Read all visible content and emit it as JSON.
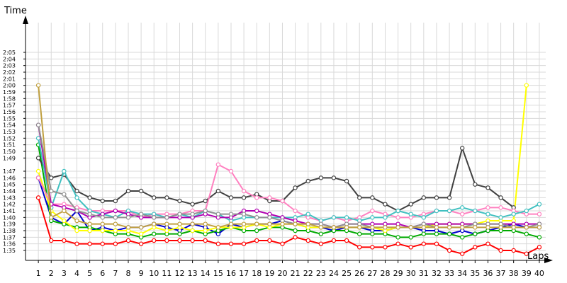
{
  "chart_data": {
    "type": "line",
    "ylabel": "Time",
    "xlabel": "Laps",
    "x": [
      1,
      2,
      3,
      4,
      5,
      6,
      7,
      8,
      9,
      10,
      11,
      12,
      13,
      14,
      15,
      16,
      17,
      18,
      19,
      20,
      21,
      22,
      23,
      24,
      25,
      26,
      27,
      28,
      29,
      30,
      31,
      32,
      33,
      34,
      35,
      36,
      37,
      38,
      39,
      40
    ],
    "xlim": [
      0,
      40.5
    ],
    "y_unit": "seconds",
    "ylim": [
      93.5,
      129.5
    ],
    "y_ticks": [
      "1:35",
      "1:36",
      "1:37",
      "1:38",
      "1:39",
      "1:40",
      "1:41",
      "1:42",
      "1:43",
      "1:44",
      "1:45",
      "1:46",
      "1:47",
      "1:49",
      "1:50",
      "1:51",
      "1:52",
      "1:53",
      "1:54",
      "1:55",
      "1:56",
      "1:57",
      "1:58",
      "1:59",
      "2:00",
      "2:01",
      "2:02",
      "2:03",
      "2:04",
      "2:05"
    ],
    "grid": true,
    "marker": "circle",
    "series": [
      {
        "color": "#ff0000",
        "values": [
          103,
          96.5,
          96.5,
          96,
          96,
          96,
          96,
          96.5,
          96,
          96.5,
          96.5,
          96.5,
          96.5,
          96.5,
          96,
          96,
          96,
          96.5,
          96.5,
          96,
          97,
          96.5,
          96,
          96.5,
          96.5,
          95.5,
          95.5,
          95.5,
          96,
          95.5,
          96,
          96,
          95,
          94.5,
          95.5,
          96,
          95,
          95,
          94.5,
          95.5
        ]
      },
      {
        "color": "#0000cc",
        "values": [
          106,
          100,
          99,
          101,
          98,
          98.5,
          98,
          98.5,
          98.5,
          99,
          98.5,
          98,
          99,
          98.5,
          97.5,
          99,
          98.5,
          99,
          99,
          99.5,
          99,
          98.5,
          98.5,
          98,
          98.5,
          98.5,
          98,
          98,
          98.5,
          98.5,
          98,
          98,
          97.5,
          98,
          97.5,
          98,
          98.5,
          99,
          98.5,
          98.5
        ]
      },
      {
        "color": "#00aa00",
        "values": [
          111,
          99.5,
          99,
          98.5,
          98.5,
          98,
          97.5,
          97.5,
          97,
          97.5,
          97.5,
          97.5,
          98,
          97.5,
          98,
          98.5,
          98,
          98,
          98.5,
          98.5,
          98,
          98,
          97.5,
          98,
          98,
          97.5,
          97.5,
          97.5,
          97,
          97,
          97.5,
          97.5,
          97.5,
          97,
          97.5,
          98,
          98,
          98,
          97.5,
          97
        ]
      },
      {
        "color": "#ffff00",
        "values": [
          107,
          101,
          99.5,
          98,
          98,
          98,
          98,
          98,
          97.5,
          98.5,
          98,
          98.5,
          98,
          98,
          98.5,
          98.5,
          98.5,
          99,
          98.5,
          99,
          99,
          98.5,
          98.5,
          98.5,
          98.5,
          98.5,
          98.5,
          98,
          98.5,
          98.5,
          98.5,
          99,
          99,
          99,
          99,
          99.5,
          99.5,
          99.5,
          120,
          null
        ]
      },
      {
        "color": "#404040",
        "values": [
          109,
          106,
          106.5,
          104,
          103,
          102.5,
          102.5,
          104,
          104,
          103,
          103,
          102.5,
          102,
          102.5,
          104,
          103,
          103,
          103.5,
          102.5,
          102.5,
          104.5,
          105.5,
          106,
          106,
          105.5,
          103,
          103,
          102,
          101,
          102,
          103,
          103,
          103,
          110.5,
          105,
          104.5,
          103,
          101.5,
          null,
          null
        ]
      },
      {
        "color": "#ff80c0",
        "values": [
          106,
          102,
          102,
          101.5,
          101,
          101,
          101,
          101,
          100,
          100.5,
          100.5,
          100.5,
          101,
          101,
          108,
          107,
          104,
          103,
          103,
          102.5,
          101,
          100,
          99.5,
          100,
          99.5,
          100,
          101,
          100.5,
          100,
          100,
          100.5,
          101,
          101,
          100.5,
          101,
          101.5,
          101.5,
          101,
          100.5,
          100.5
        ]
      },
      {
        "color": "#40c0c0",
        "values": [
          112,
          101.5,
          107,
          103,
          101,
          100.5,
          100,
          101,
          100.5,
          100.5,
          100,
          100.5,
          100,
          101,
          100.5,
          99.5,
          100,
          100,
          100,
          100,
          100,
          100.5,
          99.5,
          100,
          100,
          99.5,
          100,
          100,
          101,
          100.5,
          100,
          101,
          101,
          101.5,
          101,
          100.5,
          100,
          100.5,
          101,
          102
        ]
      },
      {
        "color": "#b000b0",
        "values": [
          114,
          102,
          101.5,
          101,
          100,
          100.5,
          101,
          100.5,
          100,
          100,
          100,
          100,
          100,
          100.5,
          100,
          100,
          101,
          101,
          100.5,
          100,
          99.5,
          99,
          99,
          98.5,
          99,
          99,
          99,
          99,
          99,
          98.5,
          99,
          99,
          99,
          99,
          99,
          99,
          99,
          99,
          99,
          99
        ]
      },
      {
        "color": "#909090",
        "values": [
          114,
          104,
          103.5,
          101,
          100.5,
          100,
          100,
          100,
          100.5,
          100,
          100,
          100.5,
          100.5,
          101,
          100.5,
          100.5,
          100.5,
          100,
          100,
          99.5,
          99,
          99,
          99,
          98.5,
          99,
          99,
          98.5,
          98.5,
          98.5,
          98.5,
          99,
          98.5,
          98.5,
          98.5,
          99,
          99,
          99,
          98.5,
          98.5,
          99
        ]
      },
      {
        "color": "#c0a040",
        "values": [
          120,
          100,
          101,
          99.5,
          99,
          99,
          99,
          98.5,
          98.5,
          99,
          99,
          99,
          99,
          99,
          98.5,
          99,
          99,
          99,
          99,
          99,
          99,
          99,
          98.5,
          98.5,
          98.5,
          98.5,
          98.5,
          98.5,
          98.5,
          98.5,
          98.5,
          98.5,
          98.5,
          98.5,
          98.5,
          98.5,
          98.5,
          98.5,
          98.5,
          98.5
        ]
      }
    ]
  }
}
